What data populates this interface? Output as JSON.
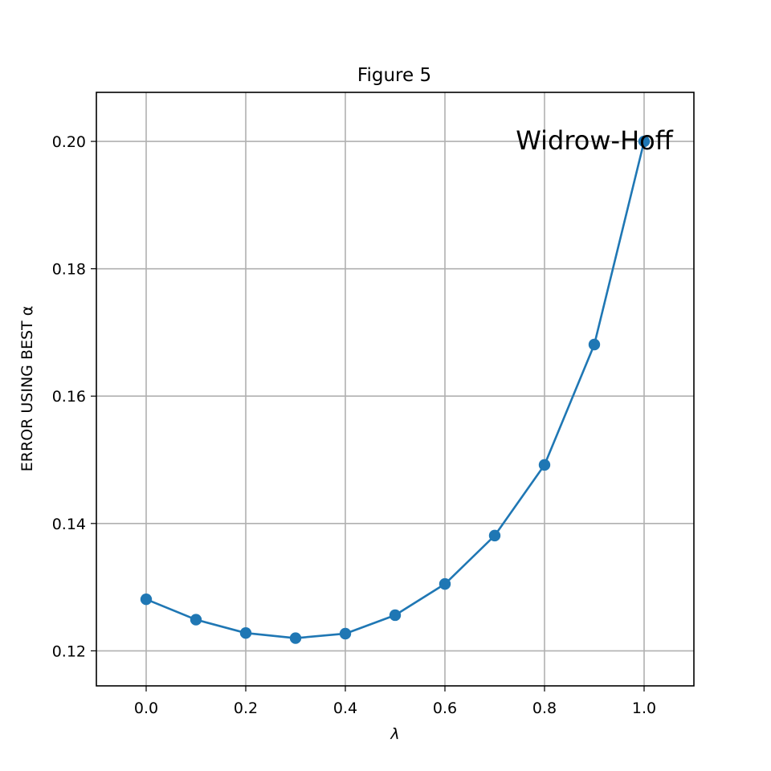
{
  "chart_data": {
    "type": "line",
    "title": "Figure 5",
    "xlabel": "λ",
    "ylabel": "ERROR USING BEST α",
    "xlim": [
      -0.1,
      1.1
    ],
    "ylim": [
      0.1145,
      0.2077
    ],
    "x_ticks": [
      0.0,
      0.2,
      0.4,
      0.6,
      0.8,
      1.0
    ],
    "x_tick_labels": [
      "0.0",
      "0.2",
      "0.4",
      "0.6",
      "0.8",
      "1.0"
    ],
    "y_ticks": [
      0.12,
      0.14,
      0.16,
      0.18,
      0.2
    ],
    "y_tick_labels": [
      "0.12",
      "0.14",
      "0.16",
      "0.18",
      "0.20"
    ],
    "grid": true,
    "series": [
      {
        "color": "#1f77b4",
        "marker": "circle",
        "x": [
          0.0,
          0.1,
          0.2,
          0.3,
          0.4,
          0.5,
          0.6,
          0.7,
          0.8,
          0.9,
          1.0
        ],
        "y": [
          0.1281,
          0.1249,
          0.1228,
          0.122,
          0.1227,
          0.1256,
          0.1305,
          0.1381,
          0.1492,
          0.1681,
          0.2
        ]
      }
    ],
    "annotations": [
      {
        "text": "Widrow-Hoff",
        "x": 0.9,
        "y": 0.2
      }
    ]
  }
}
